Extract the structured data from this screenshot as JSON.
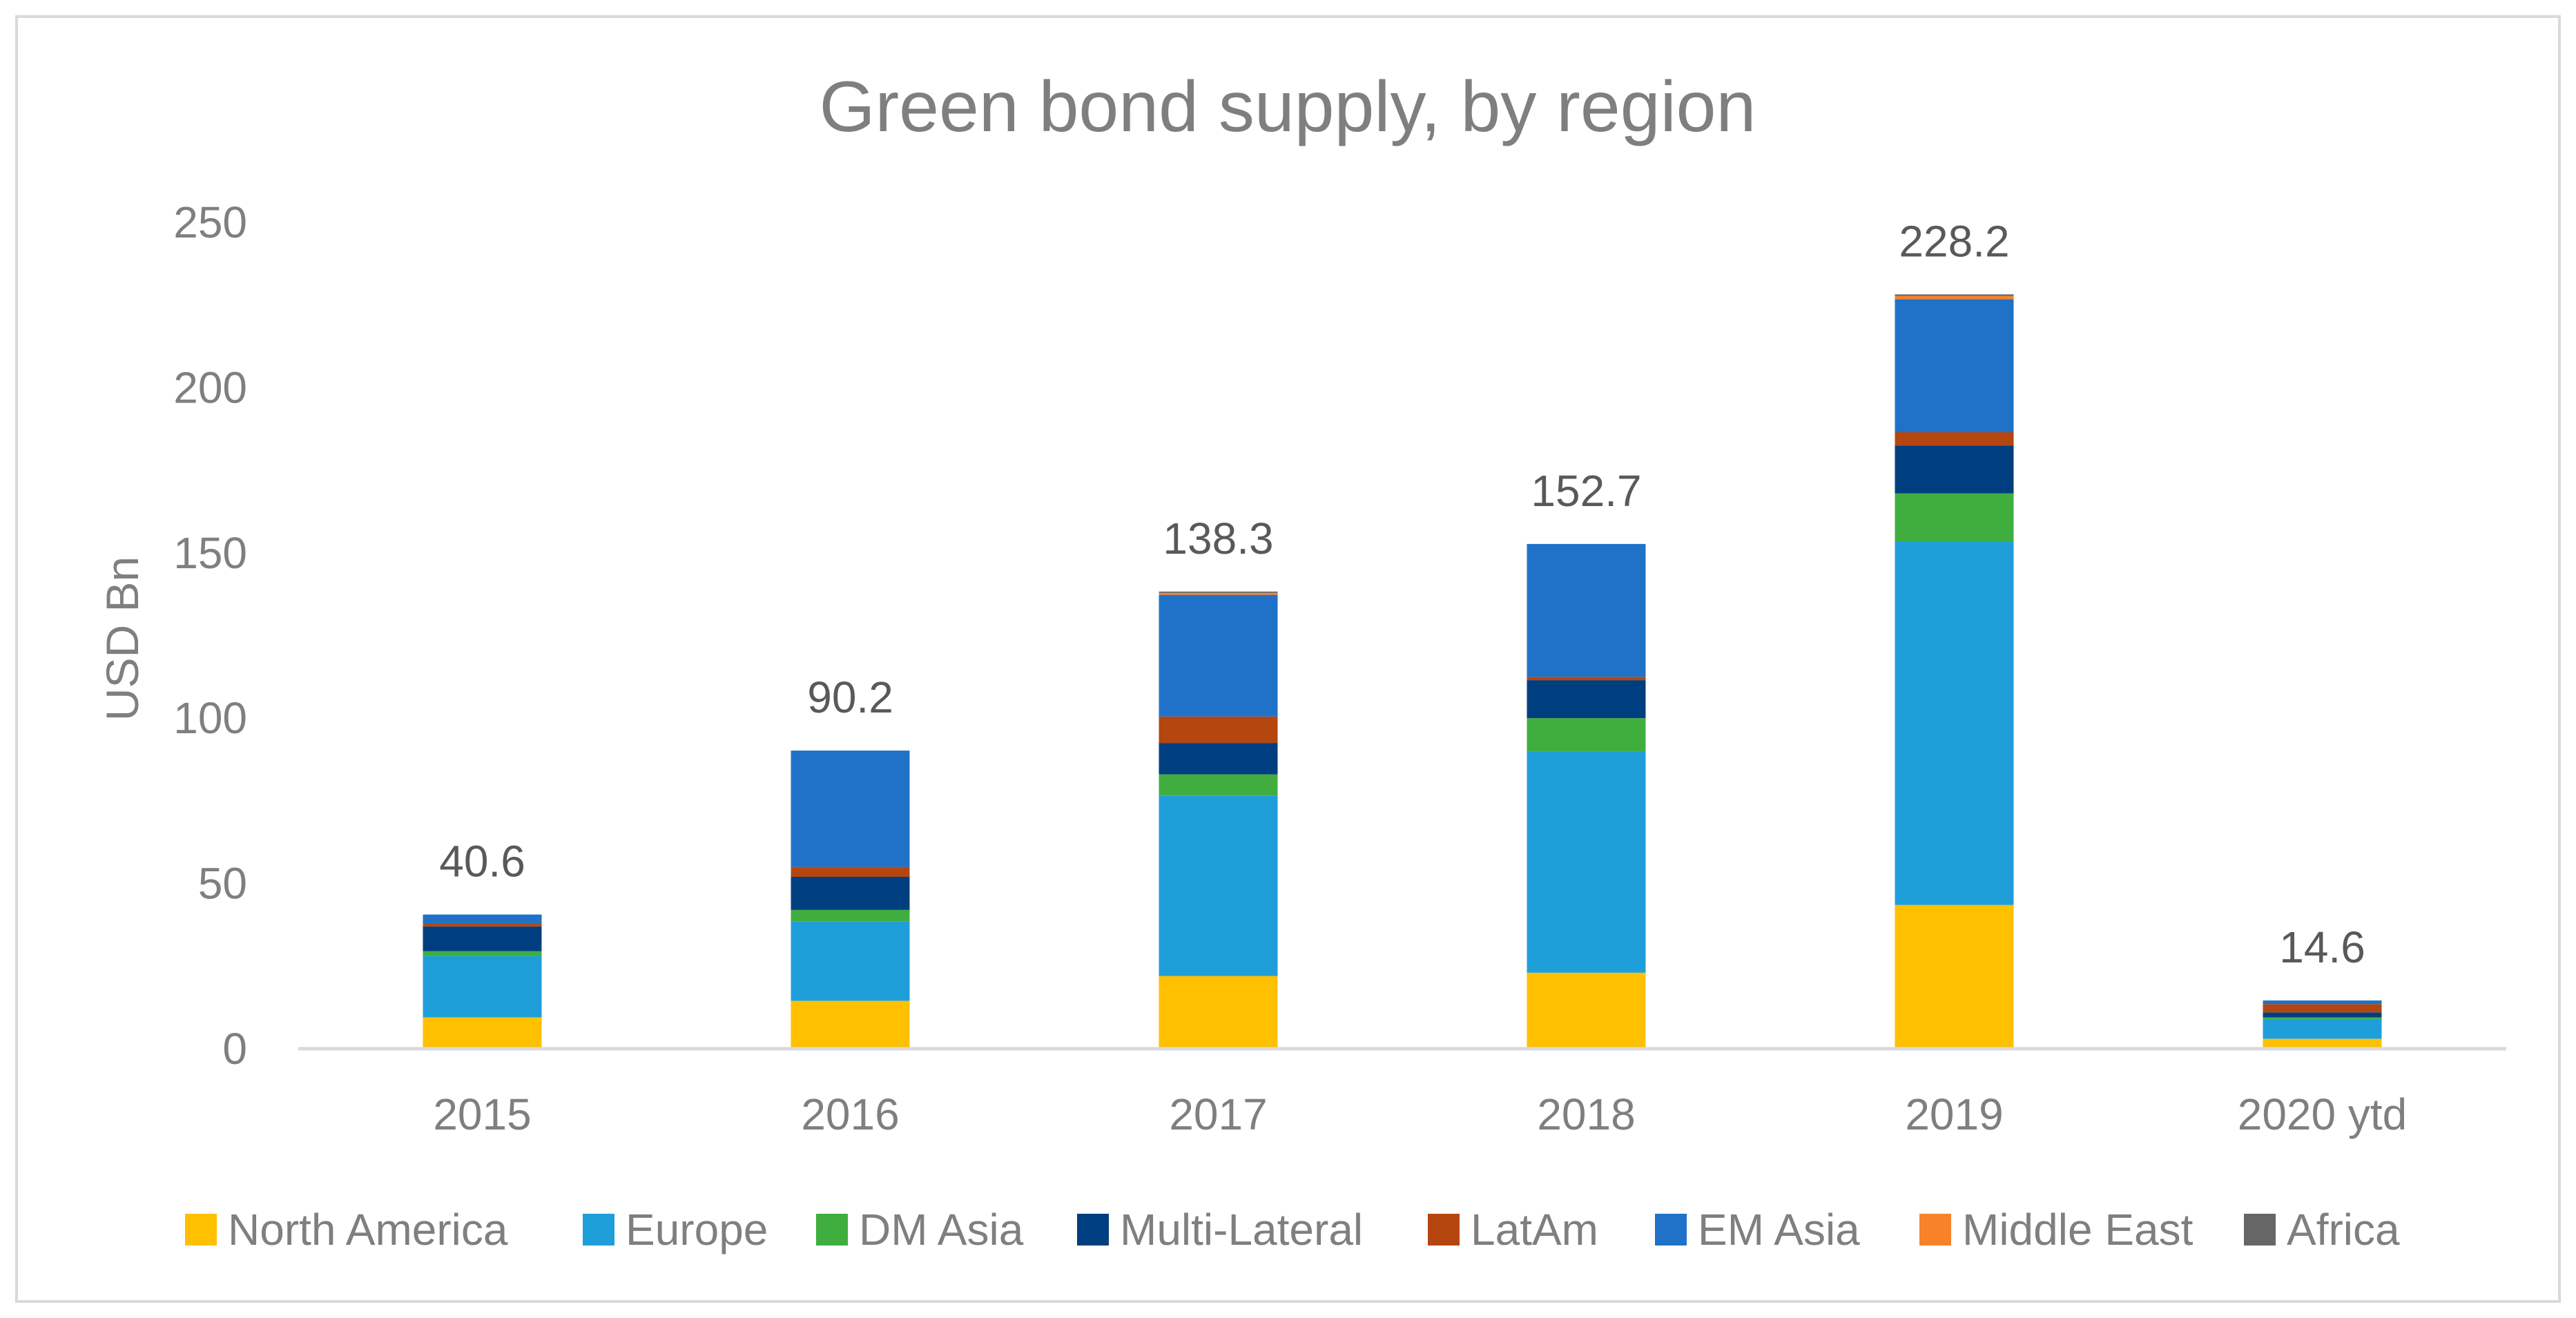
{
  "chart_data": {
    "type": "bar",
    "stacked": true,
    "title": "Green bond supply, by region",
    "xlabel": "",
    "ylabel": "USD Bn",
    "ylim": [
      0,
      250
    ],
    "yticks": [
      0,
      50,
      100,
      150,
      200,
      250
    ],
    "grid": false,
    "legend_position": "bottom",
    "categories": [
      "2015",
      "2016",
      "2017",
      "2018",
      "2019",
      "2020 ytd"
    ],
    "totals": [
      40.6,
      90.2,
      138.3,
      152.7,
      228.2,
      14.6
    ],
    "total_labels": [
      "40.6",
      "90.2",
      "138.3",
      "152.7",
      "228.2",
      "14.6"
    ],
    "series": [
      {
        "name": "North America",
        "color": "#FFC000",
        "values": [
          9.5,
          14.5,
          22.0,
          23.0,
          43.5,
          3.0
        ]
      },
      {
        "name": "Europe",
        "color": "#1F9FDA",
        "values": [
          18.5,
          24.0,
          54.5,
          67.0,
          110.0,
          6.0
        ]
      },
      {
        "name": "DM Asia",
        "color": "#3FAE3F",
        "values": [
          1.5,
          3.5,
          6.5,
          10.0,
          14.5,
          0.5
        ]
      },
      {
        "name": "Multi-Lateral",
        "color": "#003F7F",
        "values": [
          7.5,
          10.0,
          9.5,
          11.5,
          14.5,
          1.5
        ]
      },
      {
        "name": "LatAm",
        "color": "#B5460F",
        "values": [
          1.0,
          3.0,
          8.0,
          1.0,
          4.0,
          2.5
        ]
      },
      {
        "name": "EM Asia",
        "color": "#1F72C8",
        "values": [
          2.6,
          35.2,
          36.8,
          40.2,
          40.2,
          1.1
        ]
      },
      {
        "name": "Middle East",
        "color": "#F7822A",
        "values": [
          0,
          0,
          0.6,
          0,
          1.0,
          0
        ]
      },
      {
        "name": "Africa",
        "color": "#666666",
        "values": [
          0,
          0,
          0.4,
          0,
          0.5,
          0
        ]
      }
    ]
  },
  "colors": {
    "axis_line": "#D9D9D9",
    "text": "#7F7F7F",
    "label_text": "#595959"
  }
}
